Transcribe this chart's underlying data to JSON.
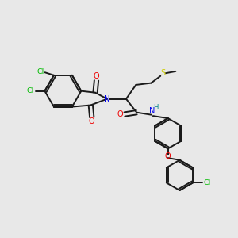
{
  "bg_color": "#e8e8e8",
  "bond_color": "#1a1a1a",
  "cl_color": "#00bb00",
  "n_color": "#0000ee",
  "o_color": "#ee0000",
  "s_color": "#cccc00",
  "h_color": "#008888",
  "figsize": [
    3.0,
    3.0
  ],
  "dpi": 100,
  "xlim": [
    0,
    10
  ],
  "ylim": [
    0,
    10
  ]
}
